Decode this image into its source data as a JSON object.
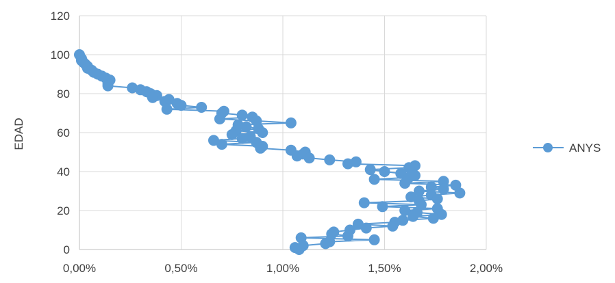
{
  "chart_data": {
    "type": "line",
    "title": "",
    "xlabel": "",
    "ylabel": "EDAD",
    "xlim": [
      0,
      0.02
    ],
    "ylim": [
      0,
      120
    ],
    "x_ticks": [
      0,
      0.005,
      0.01,
      0.015,
      0.02
    ],
    "x_tick_labels": [
      "0,00%",
      "0,50%",
      "1,00%",
      "1,50%",
      "2,00%"
    ],
    "y_ticks": [
      0,
      20,
      40,
      60,
      80,
      100,
      120
    ],
    "y_tick_labels": [
      "0",
      "20",
      "40",
      "60",
      "80",
      "100",
      "120"
    ],
    "grid": {
      "vertical": true,
      "horizontal": true
    },
    "legend_position": "right",
    "marker_color": "#5B9BD5",
    "line_color": "#5B9BD5",
    "series": [
      {
        "name": "ANYS",
        "points": [
          [
            0.0,
            100
          ],
          [
            0.0001,
            98
          ],
          [
            0.0001,
            97
          ],
          [
            0.0002,
            96
          ],
          [
            0.0003,
            95
          ],
          [
            0.0004,
            94
          ],
          [
            0.0004,
            93
          ],
          [
            0.0006,
            92
          ],
          [
            0.0007,
            91
          ],
          [
            0.0009,
            90
          ],
          [
            0.0011,
            89
          ],
          [
            0.0013,
            88
          ],
          [
            0.0015,
            87
          ],
          [
            0.0014,
            86
          ],
          [
            0.0014,
            85
          ],
          [
            0.0014,
            84
          ],
          [
            0.0026,
            83
          ],
          [
            0.003,
            82
          ],
          [
            0.0033,
            81
          ],
          [
            0.0035,
            80
          ],
          [
            0.0038,
            79
          ],
          [
            0.0036,
            78
          ],
          [
            0.0044,
            77
          ],
          [
            0.0042,
            76
          ],
          [
            0.0048,
            75
          ],
          [
            0.005,
            74
          ],
          [
            0.006,
            73
          ],
          [
            0.0043,
            72
          ],
          [
            0.0071,
            71
          ],
          [
            0.007,
            70
          ],
          [
            0.008,
            69
          ],
          [
            0.0085,
            68
          ],
          [
            0.0069,
            67
          ],
          [
            0.0087,
            66
          ],
          [
            0.0104,
            65
          ],
          [
            0.0078,
            64
          ],
          [
            0.0082,
            63
          ],
          [
            0.0088,
            62
          ],
          [
            0.0077,
            61
          ],
          [
            0.009,
            60
          ],
          [
            0.0075,
            59
          ],
          [
            0.0084,
            58
          ],
          [
            0.008,
            57
          ],
          [
            0.0066,
            56
          ],
          [
            0.0087,
            55
          ],
          [
            0.007,
            54
          ],
          [
            0.009,
            53
          ],
          [
            0.0089,
            52
          ],
          [
            0.0104,
            51
          ],
          [
            0.0111,
            50
          ],
          [
            0.011,
            49
          ],
          [
            0.0107,
            48
          ],
          [
            0.0113,
            47
          ],
          [
            0.0123,
            46
          ],
          [
            0.0136,
            45
          ],
          [
            0.0132,
            44
          ],
          [
            0.0165,
            43
          ],
          [
            0.0162,
            42
          ],
          [
            0.0143,
            41
          ],
          [
            0.015,
            40
          ],
          [
            0.0158,
            39
          ],
          [
            0.0165,
            38
          ],
          [
            0.0162,
            37
          ],
          [
            0.0145,
            36
          ],
          [
            0.0179,
            35
          ],
          [
            0.016,
            34
          ],
          [
            0.0185,
            33
          ],
          [
            0.0173,
            32
          ],
          [
            0.0179,
            31
          ],
          [
            0.0167,
            30
          ],
          [
            0.0187,
            29
          ],
          [
            0.0173,
            28
          ],
          [
            0.0163,
            27
          ],
          [
            0.0176,
            26
          ],
          [
            0.0167,
            25
          ],
          [
            0.014,
            24
          ],
          [
            0.0168,
            23
          ],
          [
            0.0149,
            22
          ],
          [
            0.0176,
            21
          ],
          [
            0.016,
            20
          ],
          [
            0.0166,
            19
          ],
          [
            0.0178,
            18
          ],
          [
            0.0164,
            17
          ],
          [
            0.0174,
            16
          ],
          [
            0.0159,
            15
          ],
          [
            0.0155,
            14
          ],
          [
            0.0137,
            13
          ],
          [
            0.0154,
            12
          ],
          [
            0.0141,
            11
          ],
          [
            0.0133,
            10
          ],
          [
            0.0125,
            9
          ],
          [
            0.0124,
            8
          ],
          [
            0.0132,
            7
          ],
          [
            0.0109,
            6
          ],
          [
            0.0145,
            5
          ],
          [
            0.0123,
            4
          ],
          [
            0.0121,
            3
          ],
          [
            0.011,
            2
          ],
          [
            0.0106,
            1
          ],
          [
            0.0108,
            0
          ]
        ]
      }
    ]
  }
}
